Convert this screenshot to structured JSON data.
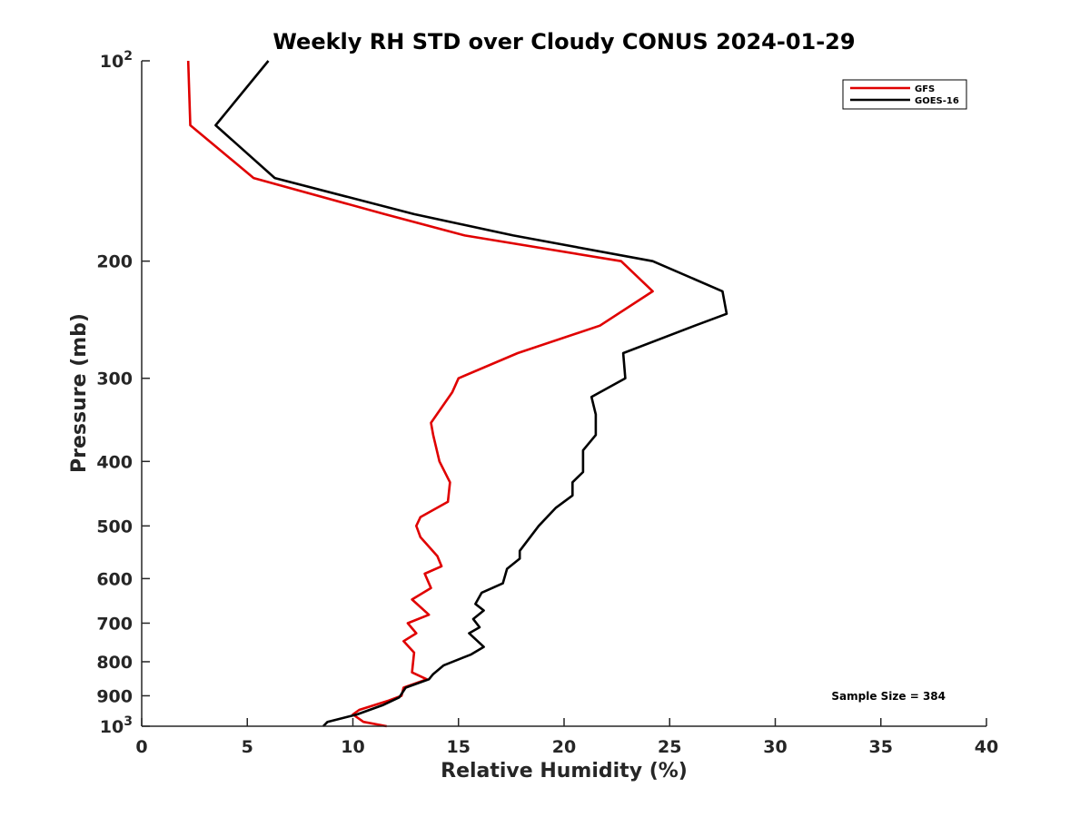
{
  "chart_data": {
    "type": "line",
    "title": "Weekly RH STD over Cloudy CONUS 2024-01-29",
    "xlabel": "Relative Humidity (%)",
    "ylabel": "Pressure (mb)",
    "xlim": [
      0,
      40
    ],
    "ylim": [
      100,
      1000
    ],
    "y_scale": "log",
    "y_reversed": true,
    "x_ticks": [
      "0",
      "5",
      "10",
      "15",
      "20",
      "25",
      "30",
      "35",
      "40"
    ],
    "y_ticks": [
      {
        "value": 100,
        "base": "10",
        "exp": "2"
      },
      {
        "value": 200,
        "label": "200"
      },
      {
        "value": 300,
        "label": "300"
      },
      {
        "value": 400,
        "label": "400"
      },
      {
        "value": 500,
        "label": "500"
      },
      {
        "value": 600,
        "label": "600"
      },
      {
        "value": 700,
        "label": "700"
      },
      {
        "value": 800,
        "label": "800"
      },
      {
        "value": 900,
        "label": "900"
      },
      {
        "value": 1000,
        "base": "10",
        "exp": "3"
      }
    ],
    "legend_position": "top-right",
    "annotation": "Sample Size = 384",
    "series": [
      {
        "name": "GFS",
        "color": "#e00000",
        "points": [
          {
            "rh": 2.2,
            "p": 100
          },
          {
            "rh": 2.3,
            "p": 125
          },
          {
            "rh": 5.3,
            "p": 150
          },
          {
            "rh": 11.5,
            "p": 170
          },
          {
            "rh": 15.3,
            "p": 183
          },
          {
            "rh": 22.7,
            "p": 200
          },
          {
            "rh": 24.2,
            "p": 222
          },
          {
            "rh": 21.7,
            "p": 250
          },
          {
            "rh": 17.8,
            "p": 275
          },
          {
            "rh": 15.0,
            "p": 300
          },
          {
            "rh": 14.7,
            "p": 315
          },
          {
            "rh": 13.7,
            "p": 350
          },
          {
            "rh": 13.8,
            "p": 365
          },
          {
            "rh": 14.1,
            "p": 400
          },
          {
            "rh": 14.6,
            "p": 430
          },
          {
            "rh": 14.5,
            "p": 460
          },
          {
            "rh": 13.2,
            "p": 485
          },
          {
            "rh": 13.0,
            "p": 500
          },
          {
            "rh": 13.2,
            "p": 520
          },
          {
            "rh": 14.0,
            "p": 555
          },
          {
            "rh": 14.2,
            "p": 575
          },
          {
            "rh": 13.4,
            "p": 590
          },
          {
            "rh": 13.7,
            "p": 620
          },
          {
            "rh": 12.8,
            "p": 645
          },
          {
            "rh": 13.6,
            "p": 680
          },
          {
            "rh": 12.6,
            "p": 700
          },
          {
            "rh": 13.0,
            "p": 725
          },
          {
            "rh": 12.4,
            "p": 745
          },
          {
            "rh": 12.9,
            "p": 775
          },
          {
            "rh": 12.8,
            "p": 830
          },
          {
            "rh": 13.5,
            "p": 850
          },
          {
            "rh": 12.4,
            "p": 875
          },
          {
            "rh": 12.3,
            "p": 900
          },
          {
            "rh": 11.7,
            "p": 915
          },
          {
            "rh": 10.3,
            "p": 945
          },
          {
            "rh": 10.0,
            "p": 960
          },
          {
            "rh": 10.5,
            "p": 985
          },
          {
            "rh": 11.6,
            "p": 1000
          }
        ]
      },
      {
        "name": "GOES-16",
        "color": "#000000",
        "points": [
          {
            "rh": 6.0,
            "p": 100
          },
          {
            "rh": 3.5,
            "p": 125
          },
          {
            "rh": 6.3,
            "p": 150
          },
          {
            "rh": 12.9,
            "p": 170
          },
          {
            "rh": 17.6,
            "p": 183
          },
          {
            "rh": 24.2,
            "p": 200
          },
          {
            "rh": 27.5,
            "p": 222
          },
          {
            "rh": 27.7,
            "p": 240
          },
          {
            "rh": 26.2,
            "p": 250
          },
          {
            "rh": 22.8,
            "p": 275
          },
          {
            "rh": 22.9,
            "p": 300
          },
          {
            "rh": 21.3,
            "p": 320
          },
          {
            "rh": 21.5,
            "p": 340
          },
          {
            "rh": 21.5,
            "p": 365
          },
          {
            "rh": 20.9,
            "p": 385
          },
          {
            "rh": 20.9,
            "p": 415
          },
          {
            "rh": 20.4,
            "p": 430
          },
          {
            "rh": 20.4,
            "p": 450
          },
          {
            "rh": 19.6,
            "p": 470
          },
          {
            "rh": 18.8,
            "p": 500
          },
          {
            "rh": 17.9,
            "p": 545
          },
          {
            "rh": 17.9,
            "p": 560
          },
          {
            "rh": 17.3,
            "p": 580
          },
          {
            "rh": 17.1,
            "p": 610
          },
          {
            "rh": 16.1,
            "p": 630
          },
          {
            "rh": 15.8,
            "p": 655
          },
          {
            "rh": 16.2,
            "p": 670
          },
          {
            "rh": 15.7,
            "p": 690
          },
          {
            "rh": 16.0,
            "p": 710
          },
          {
            "rh": 15.5,
            "p": 725
          },
          {
            "rh": 16.2,
            "p": 760
          },
          {
            "rh": 15.6,
            "p": 780
          },
          {
            "rh": 14.3,
            "p": 810
          },
          {
            "rh": 13.8,
            "p": 835
          },
          {
            "rh": 13.6,
            "p": 850
          },
          {
            "rh": 12.5,
            "p": 875
          },
          {
            "rh": 12.2,
            "p": 905
          },
          {
            "rh": 11.4,
            "p": 930
          },
          {
            "rh": 10.2,
            "p": 960
          },
          {
            "rh": 8.8,
            "p": 985
          },
          {
            "rh": 8.6,
            "p": 1000
          }
        ]
      }
    ]
  }
}
